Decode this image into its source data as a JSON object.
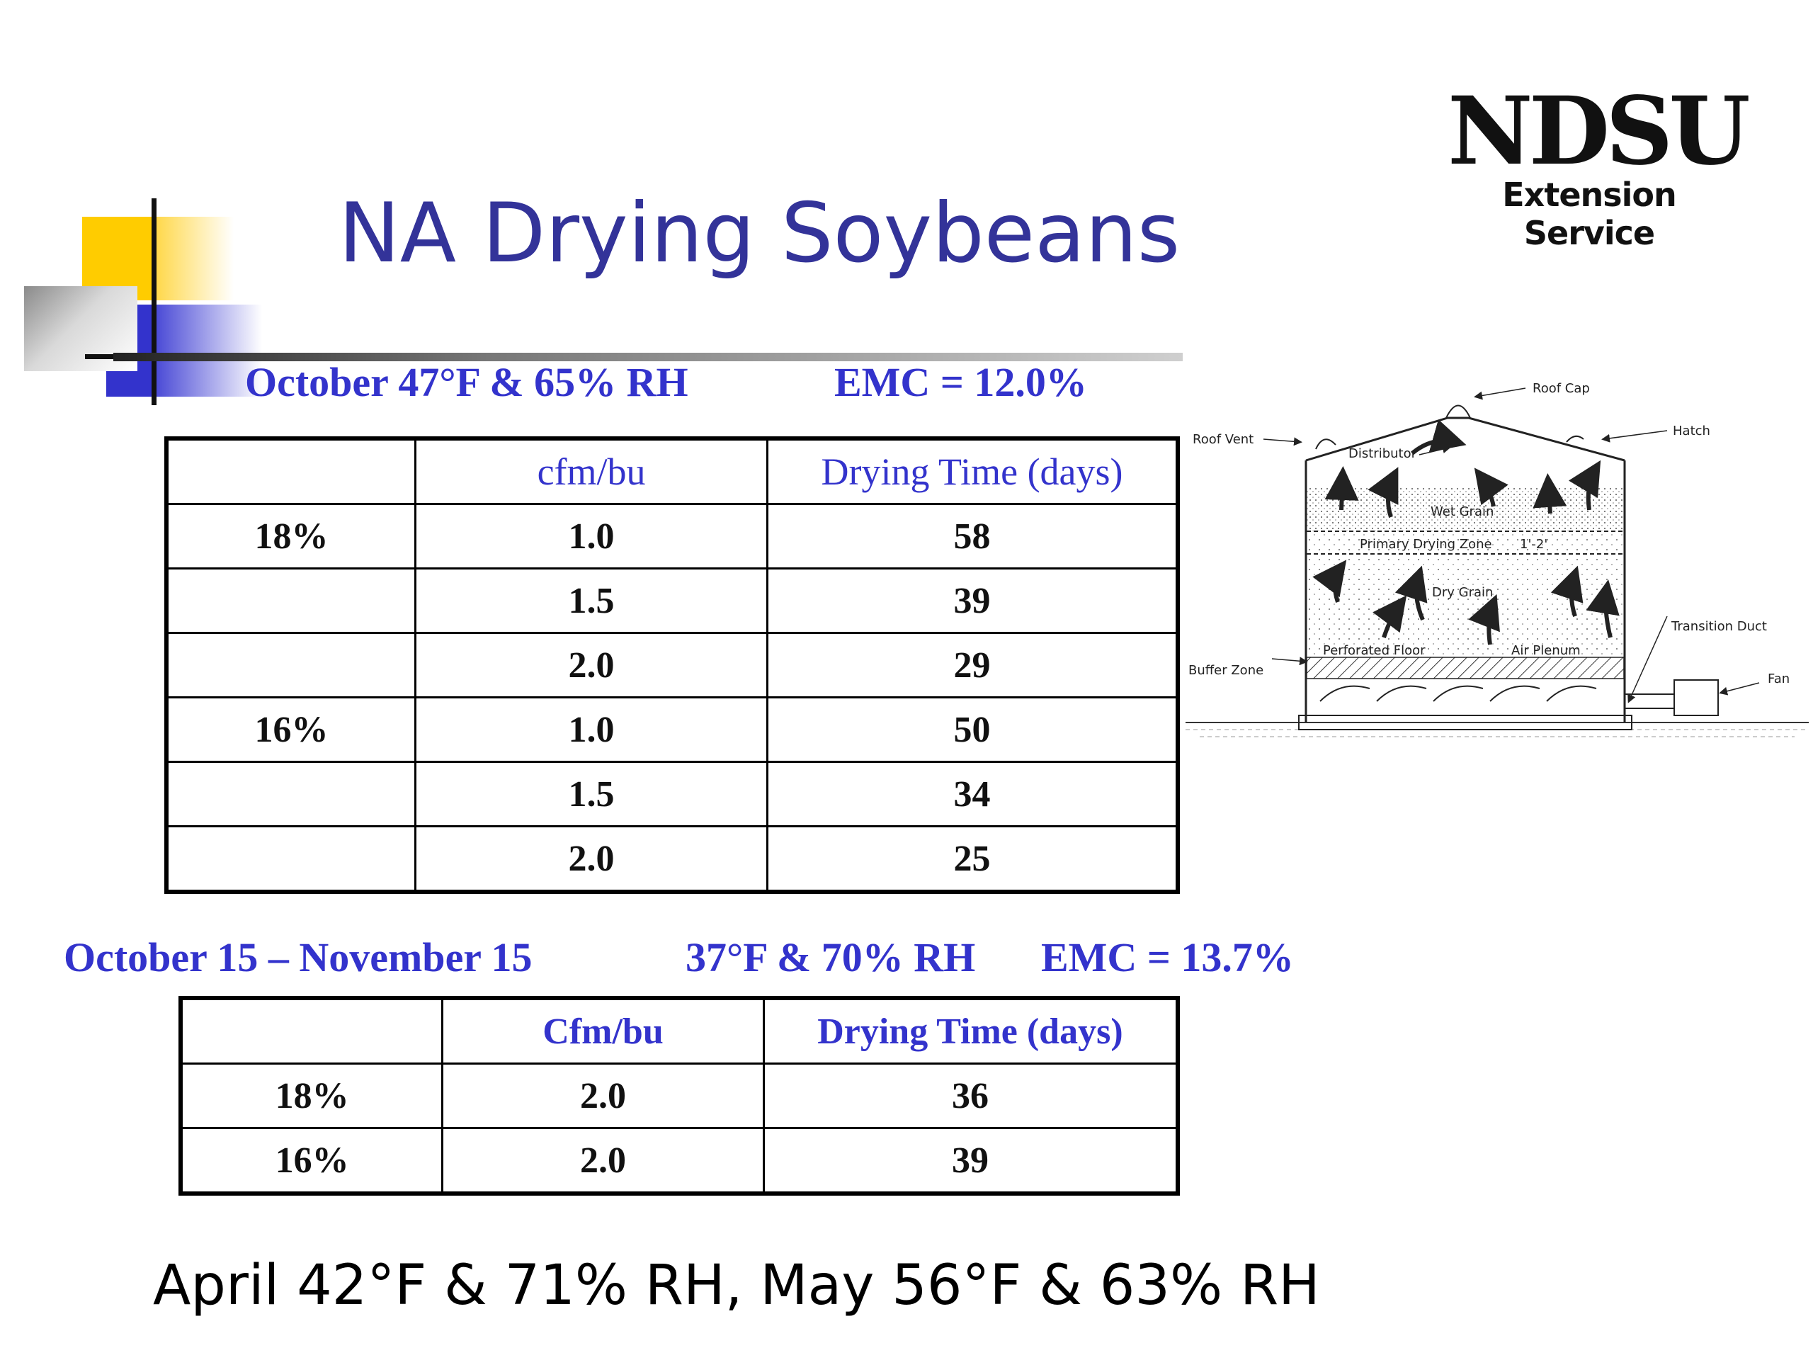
{
  "title": "NA Drying Soybeans",
  "logo": {
    "main": "NDSU",
    "sub": "Extension Service"
  },
  "section1": {
    "condition": "October 47°F & 65% RH",
    "emc": "EMC = 12.0%",
    "headers": [
      "",
      "cfm/bu",
      "Drying Time (days)"
    ],
    "rows": [
      [
        "18%",
        "1.0",
        "58"
      ],
      [
        "",
        "1.5",
        "39"
      ],
      [
        "",
        "2.0",
        "29"
      ],
      [
        "16%",
        "1.0",
        "50"
      ],
      [
        "",
        "1.5",
        "34"
      ],
      [
        "",
        "2.0",
        "25"
      ]
    ]
  },
  "section2": {
    "period": "October 15 – November 15",
    "condition": "37°F & 70% RH",
    "emc": "EMC = 13.7%",
    "headers": [
      "",
      "Cfm/bu",
      "Drying Time (days)"
    ],
    "rows": [
      [
        "18%",
        "2.0",
        "36"
      ],
      [
        "16%",
        "2.0",
        "39"
      ]
    ]
  },
  "bottom_note": "April 42°F & 71% RH,  May 56°F & 63% RH",
  "diagram": {
    "labels": {
      "roof_cap": "Roof Cap",
      "hatch": "Hatch",
      "roof_vent": "Roof Vent",
      "distributor": "Distributor",
      "wet_grain": "Wet Grain",
      "primary_zone": "Primary Drying Zone",
      "zone_depth": "1'-2'",
      "dry_grain": "Dry Grain",
      "transition_duct": "Transition Duct",
      "perforated_floor": "Perforated Floor",
      "air_plenum": "Air Plenum",
      "buffer_zone": "Buffer Zone",
      "fan": "Fan"
    }
  },
  "colors": {
    "title": "#333399",
    "heading": "#3333CC",
    "accent_yellow": "#FFCC00",
    "accent_blue": "#3333CC"
  }
}
